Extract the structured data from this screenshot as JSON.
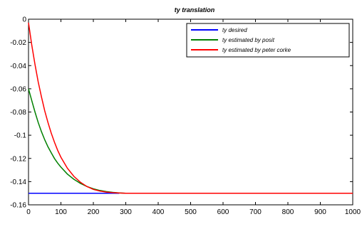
{
  "chart_data": {
    "type": "line",
    "title": "ty translation",
    "xlabel": "",
    "ylabel": "",
    "xlim": [
      0,
      1000
    ],
    "ylim": [
      -0.16,
      0
    ],
    "x_ticks": [
      0,
      100,
      200,
      300,
      400,
      500,
      600,
      700,
      800,
      900,
      1000
    ],
    "x_tick_labels": [
      "0",
      "100",
      "200",
      "300",
      "400",
      "500",
      "600",
      "700",
      "800",
      "900",
      "1000"
    ],
    "y_ticks": [
      0,
      -0.02,
      -0.04,
      -0.06,
      -0.08,
      -0.1,
      -0.12,
      -0.14,
      -0.16
    ],
    "y_tick_labels": [
      "0",
      "-0.02",
      "-0.04",
      "-0.06",
      "-0.08",
      "-0.1",
      "-0.12",
      "-0.14",
      "-0.16"
    ],
    "grid": false,
    "legend_position": "top-right",
    "series": [
      {
        "name": "ty desired",
        "color": "#0000ff",
        "x": [
          0,
          100,
          200,
          280
        ],
        "y": [
          -0.15,
          -0.15,
          -0.15,
          -0.15
        ]
      },
      {
        "name": "ty estimated by posit",
        "color": "#008000",
        "x": [
          0,
          10,
          20,
          30,
          40,
          50,
          60,
          70,
          80,
          90,
          100,
          120,
          140,
          160,
          180,
          200,
          220,
          240,
          260,
          280,
          300
        ],
        "y": [
          -0.06,
          -0.07,
          -0.08,
          -0.089,
          -0.097,
          -0.104,
          -0.11,
          -0.115,
          -0.12,
          -0.124,
          -0.1275,
          -0.1335,
          -0.138,
          -0.1415,
          -0.1442,
          -0.1462,
          -0.1476,
          -0.1486,
          -0.1493,
          -0.1497,
          -0.15
        ]
      },
      {
        "name": "ty estimated by peter corke",
        "color": "#ff0000",
        "x": [
          0,
          10,
          20,
          30,
          40,
          50,
          60,
          70,
          80,
          90,
          100,
          120,
          140,
          160,
          180,
          200,
          220,
          240,
          260,
          280,
          300,
          400,
          500,
          600,
          700,
          800,
          900,
          1000
        ],
        "y": [
          -0.003,
          -0.022,
          -0.039,
          -0.054,
          -0.067,
          -0.079,
          -0.089,
          -0.098,
          -0.106,
          -0.113,
          -0.119,
          -0.1285,
          -0.1355,
          -0.1405,
          -0.1442,
          -0.1467,
          -0.1481,
          -0.149,
          -0.1495,
          -0.1498,
          -0.15,
          -0.15,
          -0.15,
          -0.15,
          -0.15,
          -0.15,
          -0.15,
          -0.15
        ]
      }
    ]
  }
}
